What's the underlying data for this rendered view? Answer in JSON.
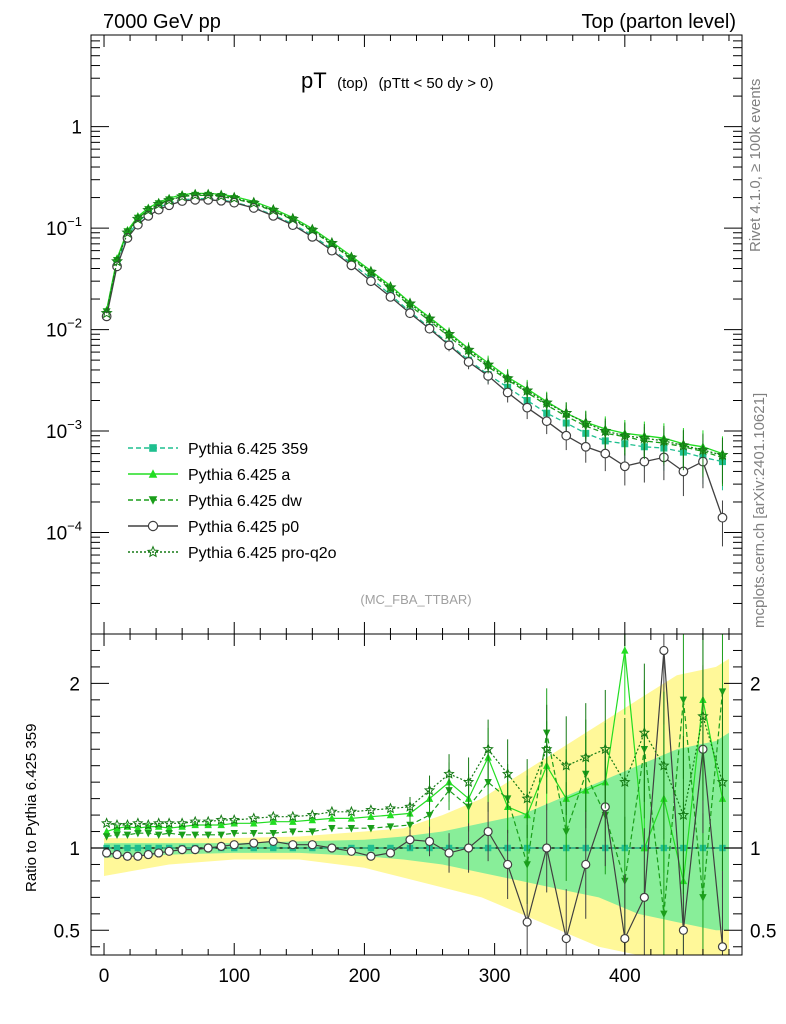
{
  "header": {
    "left": "7000 GeV pp",
    "right": "Top (parton level)"
  },
  "side_labels": {
    "rivet": "Rivet 4.1.0, ≥ 100k events",
    "mcplots": "mcplots.cern.ch [arXiv:2401.10621]"
  },
  "plot_title": {
    "main": "pT",
    "sub1": "(top)",
    "sub2": "(pTtt < 50 dy > 0)"
  },
  "analysis_tag": "(MC_FBA_TTBAR)",
  "ratio_ylabel": "Ratio to Pythia 6.425 359",
  "colors": {
    "s359": "#1fbf8f",
    "a": "#22dd22",
    "dw": "#1a9e1a",
    "p0": "#404040",
    "q2o": "#157a15",
    "band_yellow": "#fff899",
    "band_green": "#88ee99"
  },
  "chart_data": {
    "type": "line",
    "xlabel": "",
    "x_range": [
      -10,
      490
    ],
    "x_ticks": [
      0,
      100,
      200,
      300,
      400
    ],
    "x_tick_labels": [
      "0",
      "100",
      "200",
      "300",
      "400"
    ],
    "main_yscale": "log",
    "main_ylim": [
      1e-05,
      8
    ],
    "main_yticks": [
      {
        "v": 1,
        "base": "1",
        "exp": ""
      },
      {
        "v": 0.1,
        "base": "10",
        "exp": "−1"
      },
      {
        "v": 0.01,
        "base": "10",
        "exp": "−2"
      },
      {
        "v": 0.001,
        "base": "10",
        "exp": "−3"
      },
      {
        "v": 0.0001,
        "base": "10",
        "exp": "−4"
      }
    ],
    "ratio_ylim": [
      0.35,
      2.3
    ],
    "ratio_yticks": [
      0.5,
      1,
      2
    ],
    "ratio_ytick_labels": [
      "0.5",
      "1",
      "2"
    ],
    "reference": "Pythia 6.425 359",
    "x": [
      2,
      10,
      18,
      26,
      34,
      42,
      50,
      60,
      70,
      80,
      90,
      100,
      115,
      130,
      145,
      160,
      175,
      190,
      205,
      220,
      235,
      250,
      265,
      280,
      295,
      310,
      325,
      340,
      355,
      370,
      385,
      400,
      415,
      430,
      445,
      460,
      475
    ],
    "series": [
      {
        "name": "Pythia 6.425 359",
        "key": "s359",
        "marker": "square",
        "dash": "dashed",
        "values": [
          0.014,
          0.045,
          0.085,
          0.115,
          0.14,
          0.16,
          0.175,
          0.19,
          0.195,
          0.195,
          0.19,
          0.18,
          0.16,
          0.135,
          0.11,
          0.085,
          0.062,
          0.045,
          0.032,
          0.022,
          0.015,
          0.0105,
          0.0072,
          0.005,
          0.0036,
          0.0027,
          0.002,
          0.0015,
          0.0012,
          0.00095,
          0.0008,
          0.00075,
          0.0007,
          0.00068,
          0.00062,
          0.00055,
          0.0005
        ],
        "ratio": [
          1,
          1,
          1,
          1,
          1,
          1,
          1,
          1,
          1,
          1,
          1,
          1,
          1,
          1,
          1,
          1,
          1,
          1,
          1,
          1,
          1,
          1,
          1,
          1,
          1,
          1,
          1,
          1,
          1,
          1,
          1,
          1,
          1,
          1,
          1,
          1,
          1
        ]
      },
      {
        "name": "Pythia 6.425 a",
        "key": "a",
        "marker": "triangle-up",
        "dash": "solid",
        "values": [
          0.0155,
          0.05,
          0.095,
          0.13,
          0.158,
          0.18,
          0.197,
          0.214,
          0.22,
          0.22,
          0.215,
          0.205,
          0.183,
          0.155,
          0.127,
          0.099,
          0.073,
          0.053,
          0.038,
          0.027,
          0.0185,
          0.0132,
          0.0093,
          0.0065,
          0.0047,
          0.0034,
          0.0026,
          0.00195,
          0.0015,
          0.00122,
          0.00105,
          0.00095,
          0.0009,
          0.00085,
          0.00075,
          0.0007,
          0.0006
        ],
        "ratio": [
          1.1,
          1.12,
          1.13,
          1.12,
          1.13,
          1.13,
          1.12,
          1.13,
          1.14,
          1.14,
          1.14,
          1.15,
          1.15,
          1.16,
          1.16,
          1.17,
          1.18,
          1.18,
          1.19,
          1.2,
          1.21,
          1.3,
          1.4,
          1.3,
          1.55,
          1.25,
          1.2,
          1.5,
          1.3,
          1.35,
          1.4,
          2.2,
          1.0,
          1.3,
          0.8,
          1.9,
          1.3
        ]
      },
      {
        "name": "Pythia 6.425 dw",
        "key": "dw",
        "marker": "triangle-down",
        "dash": "dashed",
        "values": [
          0.015,
          0.048,
          0.092,
          0.125,
          0.152,
          0.174,
          0.19,
          0.205,
          0.21,
          0.21,
          0.205,
          0.195,
          0.174,
          0.147,
          0.121,
          0.094,
          0.069,
          0.05,
          0.036,
          0.025,
          0.0172,
          0.0122,
          0.0085,
          0.006,
          0.0043,
          0.0032,
          0.0024,
          0.0018,
          0.0014,
          0.00112,
          0.00095,
          0.00088,
          0.0008,
          0.00076,
          0.0007,
          0.00063,
          0.00055
        ],
        "ratio": [
          1.07,
          1.08,
          1.08,
          1.09,
          1.09,
          1.08,
          1.09,
          1.08,
          1.08,
          1.08,
          1.08,
          1.09,
          1.09,
          1.09,
          1.1,
          1.1,
          1.12,
          1.12,
          1.12,
          1.13,
          1.14,
          1.2,
          1.35,
          1.25,
          1.4,
          1.3,
          0.9,
          1.7,
          1.1,
          1.45,
          1.2,
          0.8,
          1.6,
          0.6,
          1.9,
          0.7,
          1.95
        ]
      },
      {
        "name": "Pythia 6.425 p0",
        "key": "p0",
        "marker": "circle-open",
        "dash": "solid",
        "values": [
          0.0135,
          0.042,
          0.08,
          0.108,
          0.132,
          0.152,
          0.168,
          0.185,
          0.19,
          0.19,
          0.186,
          0.178,
          0.158,
          0.132,
          0.107,
          0.082,
          0.06,
          0.043,
          0.03,
          0.021,
          0.0145,
          0.0102,
          0.007,
          0.0048,
          0.0035,
          0.0024,
          0.0017,
          0.00125,
          0.0009,
          0.0007,
          0.0006,
          0.00045,
          0.0005,
          0.00055,
          0.0004,
          0.0005,
          0.00014
        ],
        "ratio": [
          0.97,
          0.96,
          0.95,
          0.95,
          0.96,
          0.97,
          0.98,
          0.99,
          0.99,
          1.0,
          1.01,
          1.02,
          1.03,
          1.04,
          1.02,
          1.02,
          1.0,
          0.98,
          0.95,
          0.97,
          1.05,
          1.04,
          0.97,
          1.0,
          1.1,
          0.9,
          0.55,
          1.0,
          0.45,
          0.9,
          1.25,
          0.45,
          0.7,
          2.2,
          0.5,
          1.6,
          0.4
        ]
      },
      {
        "name": "Pythia 6.425 pro-q2o",
        "key": "q2o",
        "marker": "star-open",
        "dash": "dotted",
        "values": [
          0.0145,
          0.047,
          0.09,
          0.123,
          0.15,
          0.172,
          0.188,
          0.205,
          0.212,
          0.212,
          0.208,
          0.198,
          0.177,
          0.15,
          0.123,
          0.096,
          0.071,
          0.051,
          0.037,
          0.026,
          0.018,
          0.0128,
          0.009,
          0.0063,
          0.0045,
          0.0033,
          0.0025,
          0.0019,
          0.0015,
          0.0012,
          0.001,
          0.0009,
          0.00085,
          0.0008,
          0.00072,
          0.00065,
          0.00058
        ],
        "ratio": [
          1.15,
          1.14,
          1.14,
          1.15,
          1.14,
          1.15,
          1.15,
          1.15,
          1.16,
          1.16,
          1.17,
          1.17,
          1.18,
          1.19,
          1.19,
          1.2,
          1.22,
          1.22,
          1.23,
          1.24,
          1.25,
          1.35,
          1.45,
          1.4,
          1.6,
          1.45,
          1.3,
          1.6,
          1.5,
          1.55,
          1.6,
          1.4,
          1.7,
          1.5,
          1.2,
          1.8,
          1.4
        ]
      }
    ],
    "band": {
      "x": [
        0,
        50,
        100,
        150,
        200,
        230,
        260,
        290,
        320,
        350,
        380,
        410,
        440,
        470,
        480
      ],
      "yellow_lo": [
        0.83,
        0.9,
        0.93,
        0.93,
        0.88,
        0.82,
        0.76,
        0.7,
        0.6,
        0.5,
        0.4,
        0.35,
        0.35,
        0.35,
        0.35
      ],
      "yellow_hi": [
        1.06,
        1.06,
        1.06,
        1.07,
        1.1,
        1.12,
        1.2,
        1.3,
        1.45,
        1.6,
        1.75,
        1.9,
        2.05,
        2.1,
        2.15
      ],
      "green_lo": [
        0.94,
        0.96,
        0.97,
        0.97,
        0.95,
        0.93,
        0.9,
        0.85,
        0.8,
        0.75,
        0.7,
        0.6,
        0.55,
        0.5,
        0.5
      ],
      "green_hi": [
        1.03,
        1.03,
        1.03,
        1.04,
        1.05,
        1.07,
        1.1,
        1.15,
        1.2,
        1.3,
        1.4,
        1.5,
        1.6,
        1.65,
        1.7
      ]
    }
  }
}
